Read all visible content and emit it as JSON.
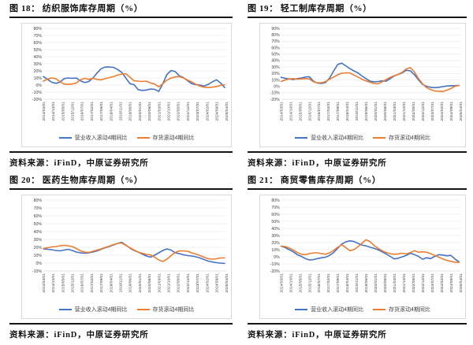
{
  "source_label": "资料来源：iFinD，中原证券研究所",
  "colors": {
    "revenue_line": "#4472C4",
    "inventory_line": "#ED7D31",
    "rule": "#151515",
    "grid": "#e4e4e4",
    "axis": "#c8c8c8",
    "box_border": "#d9d9d9",
    "tick_text": "#3f3f3f"
  },
  "x_tick_labels": [
    "2014/03/01",
    "2014/10/01",
    "2015/05/01",
    "2015/12/01",
    "2016/07/01",
    "2017/02/01",
    "2017/09/01",
    "2018/04/01",
    "2018/11/01",
    "2019/06/01",
    "2020/01/01",
    "2020/08/01",
    "2021/03/01",
    "2021/10/01",
    "2022/05/01",
    "2022/12/01",
    "2023/07/01",
    "2024/02/01",
    "2024/09/01",
    "2025/04/01"
  ],
  "chart_data": [
    {
      "type": "line",
      "fig": "图 18：",
      "title": "纺织服饰库存周期（%）",
      "xlabel": "",
      "ylabel": "",
      "grid": true,
      "legend_position": "bottom",
      "x_start": "2014/03",
      "x_step_months": 3,
      "ylim": [
        -20,
        80
      ],
      "yticks": [
        80,
        70,
        60,
        50,
        40,
        30,
        20,
        10,
        0,
        -10,
        -20
      ],
      "series": [
        {
          "name": "营业收入滚动4期同比",
          "color": "#4472C4",
          "values": [
            12,
            8,
            4,
            2.5,
            4,
            9,
            10,
            9.5,
            10,
            6,
            3.5,
            5,
            10,
            17,
            23,
            25.5,
            25.5,
            25,
            22,
            18,
            10,
            2,
            0.5,
            -6.5,
            -7.5,
            -7,
            -5.5,
            -6,
            -9,
            2,
            15,
            20.5,
            19,
            13,
            10.5,
            6,
            2,
            0.5,
            0,
            -1.5,
            1,
            4.5,
            7.5,
            3,
            -3.5
          ]
        },
        {
          "name": "存货滚动4期同比",
          "color": "#ED7D31",
          "values": [
            5.5,
            8.5,
            10,
            9,
            5,
            1.5,
            1,
            1.5,
            3,
            7.5,
            9.5,
            8,
            9.5,
            8,
            7.5,
            9,
            10.5,
            12,
            14,
            15.5,
            16,
            11,
            6,
            5.5,
            5,
            5.5,
            3,
            1.5,
            -2.5,
            2,
            7,
            10,
            11.5,
            12,
            10,
            7,
            4.5,
            1,
            -1.5,
            -3,
            -3.5,
            -3,
            -2,
            -0.5,
            0.5
          ]
        }
      ]
    },
    {
      "type": "line",
      "fig": "图 19：",
      "title": "轻工制库存周期（%）",
      "xlabel": "",
      "ylabel": "",
      "grid": true,
      "legend_position": "bottom",
      "x_start": "2014/03",
      "x_step_months": 3,
      "ylim": [
        -20,
        90
      ],
      "yticks": [
        90,
        80,
        70,
        60,
        50,
        40,
        30,
        20,
        10,
        0,
        -10,
        -20
      ],
      "series": [
        {
          "name": "营业收入滚动4期同比",
          "color": "#4472C4",
          "values": [
            14,
            12.5,
            11.5,
            10.5,
            12,
            13,
            14.5,
            15,
            8,
            5,
            4.5,
            6,
            13,
            24,
            34,
            36,
            32,
            27.5,
            24,
            21,
            16,
            12,
            8,
            7,
            7.5,
            8.5,
            8,
            12,
            16,
            18.5,
            21,
            25,
            24,
            18,
            10,
            3,
            0,
            -1.5,
            -2,
            -1.5,
            -0.5,
            0.5,
            1,
            1,
            1.5
          ]
        },
        {
          "name": "存货滚动4期同比",
          "color": "#ED7D31",
          "values": [
            7.5,
            10,
            11.5,
            12,
            11,
            11.5,
            12,
            11.5,
            7,
            5.5,
            5.5,
            7.5,
            11,
            14.5,
            18,
            20.5,
            21,
            21,
            17.5,
            14.5,
            11,
            8.5,
            6.5,
            4.5,
            4,
            7,
            10.5,
            14,
            16.5,
            18.5,
            22,
            27,
            29,
            22,
            12,
            4,
            -2,
            -5,
            -7,
            -7.5,
            -8,
            -6,
            -3.5,
            0,
            1.5
          ]
        }
      ]
    },
    {
      "type": "line",
      "fig": "图 20：",
      "title": "医药生物库存周期（%）",
      "xlabel": "",
      "ylabel": "",
      "grid": true,
      "legend_position": "bottom",
      "x_start": "2014/03",
      "x_step_months": 3,
      "ylim": [
        -10,
        80
      ],
      "yticks": [
        80,
        70,
        60,
        50,
        40,
        30,
        20,
        10,
        0,
        -10
      ],
      "series": [
        {
          "name": "营业收入滚动4期同比",
          "color": "#4472C4",
          "values": [
            18,
            17.5,
            17,
            16,
            15.5,
            16.5,
            17.5,
            16,
            14,
            13,
            12.5,
            13,
            14,
            15.5,
            17.5,
            19.5,
            21,
            23,
            25,
            26.5,
            23,
            19,
            16,
            14,
            11.5,
            9,
            7.5,
            10,
            13,
            16,
            18,
            16.5,
            13,
            12,
            10.5,
            9.5,
            9,
            8,
            6.5,
            4.5,
            2.5,
            1.5,
            0.5,
            0,
            -0.5
          ]
        },
        {
          "name": "存货滚动4期同比",
          "color": "#ED7D31",
          "values": [
            18.5,
            19.5,
            20.5,
            21,
            22,
            22.5,
            22,
            21,
            18.5,
            15.5,
            14,
            13.5,
            15,
            16.5,
            18,
            20,
            21.5,
            23.5,
            25,
            25.5,
            22.5,
            19.5,
            16.5,
            14,
            12.5,
            11,
            10.5,
            7.5,
            4,
            2,
            5,
            9.5,
            13.5,
            15.5,
            15.5,
            15,
            13,
            11.5,
            9.5,
            7.5,
            5.5,
            5,
            5.5,
            6.5,
            6.5
          ]
        }
      ]
    },
    {
      "type": "line",
      "fig": "图 21：",
      "title": "商贸零售库存周期（%）",
      "xlabel": "",
      "ylabel": "",
      "grid": true,
      "legend_position": "bottom",
      "x_start": "2014/03",
      "x_step_months": 3,
      "ylim": [
        -20,
        80
      ],
      "yticks": [
        80,
        70,
        60,
        50,
        40,
        30,
        20,
        10,
        0,
        -10,
        -20
      ],
      "series": [
        {
          "name": "营业收入滚动4期同比",
          "color": "#4472C4",
          "values": [
            15,
            13,
            10,
            7,
            3,
            0.5,
            -2.5,
            -4.5,
            -4,
            -2.5,
            -1.5,
            -0.5,
            2,
            6,
            12,
            18,
            21,
            22.5,
            21.5,
            19,
            16.5,
            15.5,
            13.5,
            12,
            10,
            7,
            4,
            0.5,
            -3,
            -2,
            0,
            2,
            5,
            3,
            0.5,
            -3.5,
            -1.5,
            -2.5,
            0.5,
            3,
            2.5,
            1.5,
            2,
            -3,
            -7
          ]
        },
        {
          "name": "存货滚动4期同比",
          "color": "#ED7D31",
          "values": [
            15,
            14.5,
            12.5,
            9.5,
            6,
            3.5,
            3,
            4.5,
            5.5,
            5.5,
            4.5,
            3.5,
            5.5,
            9,
            13.5,
            17,
            13,
            8.5,
            10,
            14,
            19,
            24,
            21.5,
            16,
            12,
            8.5,
            6,
            4.5,
            3.5,
            4,
            5,
            4,
            6,
            8.5,
            6.5,
            7,
            6.5,
            4.5,
            2,
            -0.5,
            -3,
            -5,
            -6.5,
            -7.5,
            -8
          ]
        }
      ]
    }
  ]
}
